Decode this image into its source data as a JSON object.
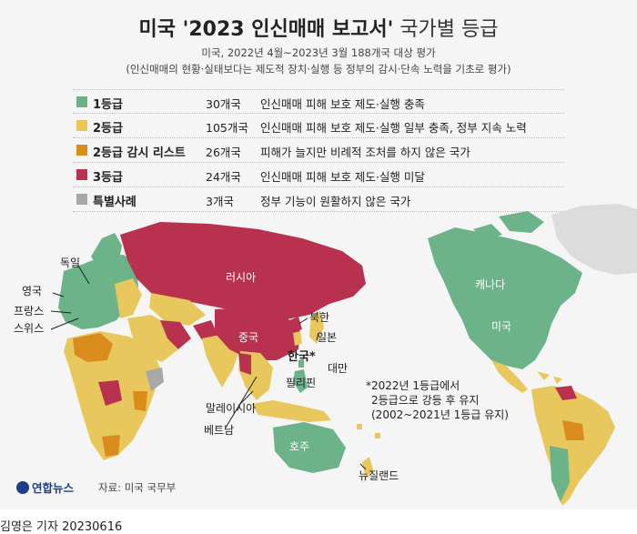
{
  "title": {
    "bold": "미국 '2023 인신매매 보고서'",
    "light": " 국가별 등급"
  },
  "subtitle_1": "미국, 2022년 4월~2023년 3월 188개국 대상 평가",
  "subtitle_2": "(인신매매의 현황·실태보다는 제도적 장치·실행 등 정부의 감시·단속 노력을 기초로 평가)",
  "legend": [
    {
      "name": "1등급",
      "count": "30개국",
      "desc": "인신매매 피해 보호 제도·실행 충족",
      "color": "#6db38a"
    },
    {
      "name": "2등급",
      "count": "105개국",
      "desc": "인신매매 피해 보호 제도·실행 일부 충족, 정부 지속 노력",
      "color": "#e8c75c"
    },
    {
      "name": "2등급 감시 리스트",
      "count": "26개국",
      "desc": "피해가 늘지만 비례적 조처를 하지 않은 국가",
      "color": "#d98c1c"
    },
    {
      "name": "3등급",
      "count": "24개국",
      "desc": "인신매매 피해 보호 제도·실행 미달",
      "color": "#b8314f"
    },
    {
      "name": "특별사례",
      "count": "3개국",
      "desc": "정부 기능이 원활하지 않은 국가",
      "color": "#a8a8a8"
    }
  ],
  "map_labels": {
    "germany": "독일",
    "uk": "영국",
    "france": "프랑스",
    "switzerland": "스위스",
    "russia": "러시아",
    "north_korea": "북한",
    "china": "중국",
    "japan": "일본",
    "korea": "한국*",
    "taiwan": "대만",
    "philippines": "필리핀",
    "malaysia": "말레이시아",
    "vietnam": "베트남",
    "australia": "호주",
    "new_zealand": "뉴질랜드",
    "canada": "캐나다",
    "usa": "미국"
  },
  "note": {
    "line1": "*2022년 1등급에서",
    "line2": "2등급으로 강등 후 유지",
    "line3": "(2002~2021년 1등급 유지)"
  },
  "logo": "연합뉴스",
  "source": "자료: 미국 국무부",
  "byline": "김영은 기자  20230616",
  "colors": {
    "tier1": "#6db38a",
    "tier2": "#e8c75c",
    "watch": "#d98c1c",
    "tier3": "#b8314f",
    "special": "#a8a8a8",
    "nodata": "#dcdcdc"
  }
}
